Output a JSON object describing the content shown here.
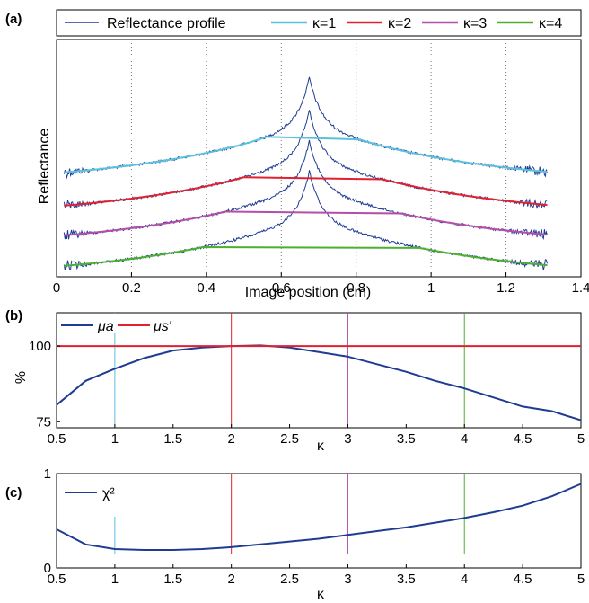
{
  "figure": {
    "panels": [
      "(a)",
      "(b)",
      "(c)"
    ]
  },
  "colors": {
    "profile": "#1f3c93",
    "k1": "#5bc0de",
    "k2": "#e3202f",
    "k3": "#b44ea9",
    "k4": "#4caf2e",
    "mua": "#1f3c93",
    "mus": "#e3202f"
  },
  "chart_data": [
    {
      "type": "line",
      "panel": "(a)",
      "xlabel": "Image position (cm)",
      "ylabel": "Reflectance",
      "xlim": [
        0,
        1.4
      ],
      "xticks": [
        "0",
        "0.2",
        "0.4",
        "0.6",
        "0.8",
        "1",
        "1.2",
        "1.4"
      ],
      "yticks": [],
      "grid": "vertical dotted at x ticks",
      "legend_position": "top",
      "legend": [
        "Reflectance profile",
        "κ=1",
        "κ=2",
        "κ=3",
        "κ=4"
      ],
      "profiles": {
        "x_range": [
          0.02,
          1.31
        ],
        "peak_x": 0.675,
        "offsets": [
          0,
          1,
          2,
          3
        ]
      },
      "fits": [
        {
          "name": "κ=1",
          "x": [
            0.02,
            0.56,
            0.81,
            1.31
          ]
        },
        {
          "name": "κ=2",
          "x": [
            0.02,
            0.5,
            0.87,
            1.31
          ]
        },
        {
          "name": "κ=3",
          "x": [
            0.02,
            0.45,
            0.92,
            1.31
          ]
        },
        {
          "name": "κ=4",
          "x": [
            0.02,
            0.39,
            0.97,
            1.31
          ]
        }
      ]
    },
    {
      "type": "line",
      "panel": "(b)",
      "xlabel": "κ",
      "ylabel": "%",
      "xlim": [
        0.5,
        5
      ],
      "ylim": [
        73,
        111
      ],
      "xticks": [
        "0.5",
        "1",
        "1.5",
        "2",
        "2.5",
        "3",
        "3.5",
        "4",
        "4.5",
        "5"
      ],
      "yticks": [
        "75",
        "100"
      ],
      "legend_position": "top-left",
      "legend": [
        "μa",
        "μs′"
      ],
      "series": [
        {
          "name": "μa",
          "x": [
            0.5,
            0.75,
            1.0,
            1.25,
            1.5,
            1.75,
            2.0,
            2.25,
            2.5,
            2.75,
            3.0,
            3.25,
            3.5,
            3.75,
            4.0,
            4.25,
            4.5,
            4.75,
            5.0
          ],
          "values": [
            80.5,
            88.5,
            92.5,
            96.0,
            98.5,
            99.5,
            100.0,
            100.2,
            99.5,
            98.0,
            96.5,
            94.0,
            91.5,
            88.5,
            86.0,
            83.0,
            80.0,
            78.5,
            75.5
          ]
        },
        {
          "name": "μs′",
          "x": [
            0.5,
            5.0
          ],
          "values": [
            100,
            100
          ]
        }
      ],
      "kappa_markers": [
        1,
        2,
        3,
        4
      ]
    },
    {
      "type": "line",
      "panel": "(c)",
      "xlabel": "κ",
      "ylabel": "",
      "xlim": [
        0.5,
        5
      ],
      "ylim": [
        0,
        1
      ],
      "xticks": [
        "0.5",
        "1",
        "1.5",
        "2",
        "2.5",
        "3",
        "3.5",
        "4",
        "4.5",
        "5"
      ],
      "yticks": [
        "0",
        "1"
      ],
      "legend_position": "top-left",
      "legend": [
        "χ²"
      ],
      "series": [
        {
          "name": "χ²",
          "x": [
            0.5,
            0.75,
            1.0,
            1.25,
            1.5,
            1.75,
            2.0,
            2.25,
            2.5,
            2.75,
            3.0,
            3.25,
            3.5,
            3.75,
            4.0,
            4.25,
            4.5,
            4.75,
            5.0
          ],
          "values": [
            0.41,
            0.25,
            0.2,
            0.19,
            0.19,
            0.2,
            0.22,
            0.25,
            0.28,
            0.31,
            0.35,
            0.39,
            0.43,
            0.48,
            0.53,
            0.59,
            0.66,
            0.76,
            0.89
          ]
        }
      ],
      "kappa_markers": [
        1,
        2,
        3,
        4
      ]
    }
  ]
}
